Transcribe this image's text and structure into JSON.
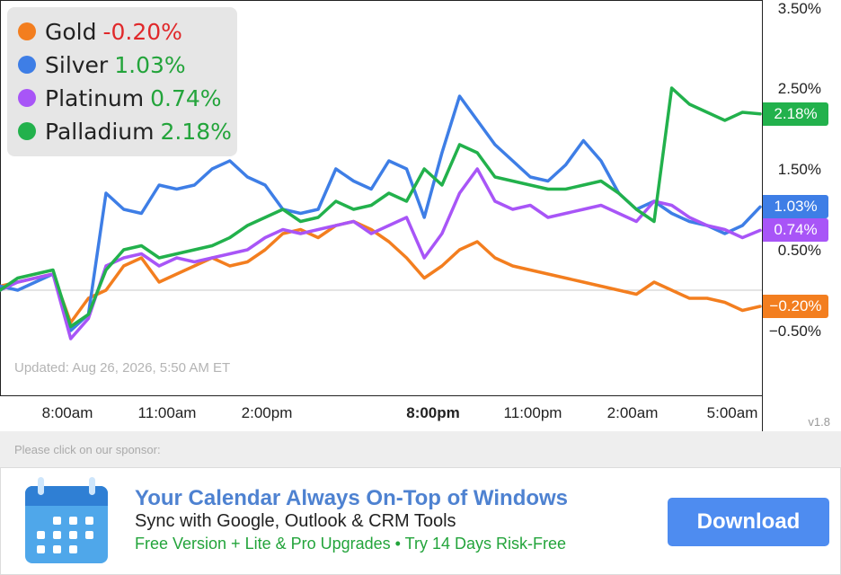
{
  "chart_data": {
    "type": "line",
    "x": [
      "08:00",
      "08:30",
      "09:00",
      "09:30",
      "10:00",
      "10:30",
      "11:00",
      "11:30",
      "12:00",
      "12:30",
      "13:00",
      "13:30",
      "14:00",
      "14:30",
      "15:00",
      "15:30",
      "16:00",
      "16:30",
      "17:00",
      "17:30",
      "18:00",
      "18:30",
      "19:00",
      "19:30",
      "20:00",
      "20:30",
      "21:00",
      "21:30",
      "22:00",
      "22:30",
      "23:00",
      "23:30",
      "00:00",
      "00:30",
      "01:00",
      "01:30",
      "02:00",
      "02:30",
      "03:00",
      "03:30",
      "04:00",
      "04:30",
      "05:00",
      "05:30"
    ],
    "y_unit": "%",
    "ylim": [
      -1.0,
      3.5
    ],
    "y_ticks": [
      "3.50%",
      "2.50%",
      "1.50%",
      "0.50%",
      "−0.50%"
    ],
    "x_ticks": [
      {
        "label": "8:00am",
        "bold": false,
        "at": "08:00"
      },
      {
        "label": "11:00am",
        "bold": false,
        "at": "11:00"
      },
      {
        "label": "2:00pm",
        "bold": false,
        "at": "14:00"
      },
      {
        "label": "8:00pm",
        "bold": true,
        "at": "20:00"
      },
      {
        "label": "11:00pm",
        "bold": false,
        "at": "23:00"
      },
      {
        "label": "2:00am",
        "bold": false,
        "at": "02:00"
      },
      {
        "label": "5:00am",
        "bold": false,
        "at": "05:00"
      }
    ],
    "baseline": 0,
    "grid": false,
    "legend_position": "top-left",
    "series": [
      {
        "name": "Gold",
        "change": "-0.20%",
        "tag": "−0.20%",
        "color": "#f37e1f",
        "change_color": "#e0282a",
        "values": [
          0.05,
          0.1,
          0.15,
          0.2,
          -0.4,
          -0.1,
          0.0,
          0.3,
          0.4,
          0.1,
          0.2,
          0.3,
          0.4,
          0.3,
          0.35,
          0.5,
          0.7,
          0.75,
          0.65,
          0.8,
          0.85,
          0.75,
          0.6,
          0.4,
          0.15,
          0.3,
          0.5,
          0.6,
          0.4,
          0.3,
          0.25,
          0.2,
          0.15,
          0.1,
          0.05,
          0.0,
          -0.05,
          0.1,
          0.0,
          -0.1,
          -0.1,
          -0.15,
          -0.25,
          -0.2
        ]
      },
      {
        "name": "Silver",
        "change": "1.03%",
        "tag": "1.03%",
        "color": "#3e7ee6",
        "change_color": "#23a43b",
        "values": [
          0.05,
          0.0,
          0.1,
          0.2,
          -0.5,
          -0.3,
          1.2,
          1.0,
          0.95,
          1.3,
          1.25,
          1.3,
          1.5,
          1.6,
          1.4,
          1.3,
          1.0,
          0.95,
          1.0,
          1.5,
          1.35,
          1.25,
          1.6,
          1.5,
          0.9,
          1.7,
          2.4,
          2.1,
          1.8,
          1.6,
          1.4,
          1.35,
          1.55,
          1.85,
          1.6,
          1.2,
          1.0,
          1.1,
          0.95,
          0.85,
          0.8,
          0.7,
          0.8,
          1.03
        ]
      },
      {
        "name": "Platinum",
        "change": "0.74%",
        "tag": "0.74%",
        "color": "#a855f7",
        "change_color": "#23a43b",
        "values": [
          0.0,
          0.1,
          0.15,
          0.2,
          -0.6,
          -0.35,
          0.3,
          0.4,
          0.45,
          0.3,
          0.4,
          0.35,
          0.4,
          0.45,
          0.5,
          0.65,
          0.75,
          0.7,
          0.75,
          0.8,
          0.85,
          0.7,
          0.8,
          0.9,
          0.4,
          0.7,
          1.2,
          1.5,
          1.1,
          1.0,
          1.05,
          0.9,
          0.95,
          1.0,
          1.05,
          0.95,
          0.85,
          1.1,
          1.05,
          0.9,
          0.8,
          0.75,
          0.65,
          0.74
        ]
      },
      {
        "name": "Palladium",
        "change": "2.18%",
        "tag": "2.18%",
        "color": "#22b14c",
        "change_color": "#23a43b",
        "values": [
          0.0,
          0.15,
          0.2,
          0.25,
          -0.45,
          -0.3,
          0.25,
          0.5,
          0.55,
          0.4,
          0.45,
          0.5,
          0.55,
          0.65,
          0.8,
          0.9,
          1.0,
          0.85,
          0.9,
          1.1,
          1.0,
          1.05,
          1.2,
          1.1,
          1.5,
          1.3,
          1.8,
          1.7,
          1.4,
          1.35,
          1.3,
          1.25,
          1.25,
          1.3,
          1.35,
          1.2,
          1.0,
          0.85,
          2.5,
          2.3,
          2.2,
          2.1,
          2.2,
          2.18
        ]
      }
    ]
  },
  "updated_text": "Updated: Aug 26, 2026, 5:50 AM ET",
  "version": "v1.8",
  "sponsor": {
    "label": "Please click on our sponsor:",
    "title": "Your Calendar Always On-Top of Windows",
    "subtitle": "Sync with Google, Outlook & CRM Tools",
    "promo": "Free Version + Lite & Pro Upgrades • Try 14 Days Risk-Free",
    "button_label": "Download",
    "icon": "calendar-icon"
  }
}
